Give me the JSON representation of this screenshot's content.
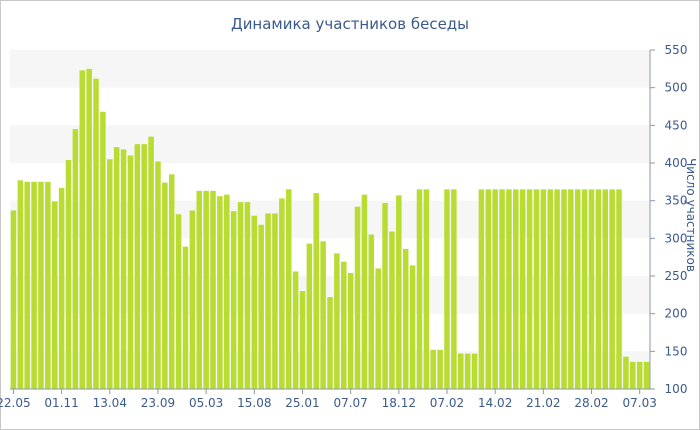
{
  "chart_data": {
    "type": "bar",
    "title": "Динамика участников беседы",
    "ylabel": "Число участников",
    "xlabel": "",
    "y_axis_position": "right",
    "ylim": [
      100,
      550
    ],
    "yticks": [
      100,
      150,
      200,
      250,
      300,
      350,
      400,
      450,
      500,
      550
    ],
    "grid": "alternating horizontal bands",
    "bar_color": "#b8dc32",
    "band_color": "#f6f6f6",
    "text_color": "#3a5a8c",
    "x_tick_labels": [
      {
        "index": 0,
        "label": "22.05"
      },
      {
        "index": 7,
        "label": "01.11"
      },
      {
        "index": 14,
        "label": "13.04"
      },
      {
        "index": 21,
        "label": "23.09"
      },
      {
        "index": 28,
        "label": "05.03"
      },
      {
        "index": 35,
        "label": "15.08"
      },
      {
        "index": 42,
        "label": "25.01"
      },
      {
        "index": 49,
        "label": "07.07"
      },
      {
        "index": 56,
        "label": "18.12"
      },
      {
        "index": 63,
        "label": "07.02"
      },
      {
        "index": 70,
        "label": "14.02"
      },
      {
        "index": 77,
        "label": "21.02"
      },
      {
        "index": 84,
        "label": "28.02"
      },
      {
        "index": 91,
        "label": "07.03"
      }
    ],
    "values": [
      337,
      377,
      375,
      375,
      375,
      375,
      349,
      367,
      404,
      445,
      523,
      525,
      512,
      468,
      405,
      421,
      418,
      410,
      425,
      425,
      435,
      402,
      374,
      385,
      332,
      289,
      337,
      363,
      363,
      363,
      356,
      358,
      336,
      348,
      348,
      330,
      318,
      333,
      333,
      353,
      365,
      256,
      230,
      293,
      360,
      296,
      222,
      280,
      269,
      254,
      342,
      358,
      305,
      260,
      347,
      309,
      357,
      286,
      264,
      365,
      365,
      152,
      152,
      365,
      365,
      147,
      147,
      147,
      365,
      365,
      365,
      365,
      365,
      365,
      365,
      365,
      365,
      365,
      365,
      365,
      365,
      365,
      365,
      365,
      365,
      365,
      365,
      365,
      365,
      143,
      136,
      136,
      136
    ]
  }
}
